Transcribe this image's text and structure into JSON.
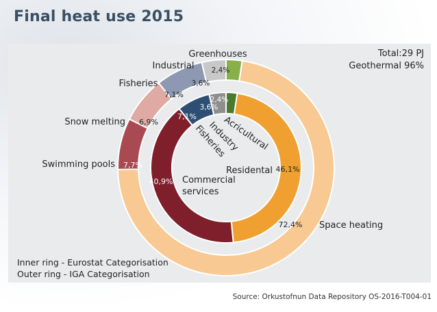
{
  "page": {
    "title": "Final heat use 2015",
    "source": "Source: Orkustofnun Data Repository OS-2016-T004-01"
  },
  "chart_data": {
    "type": "donut",
    "title": "Final heat use 2015",
    "notes": {
      "total": "Total:29 PJ",
      "geothermal": "Geothermal 96%",
      "inner_ring_legend": "Inner ring - Eurostat Categorisation",
      "outer_ring_legend": "Outer ring - IGA Categorisation"
    },
    "inner_ring": {
      "name": "Eurostat Categorisation",
      "slices": [
        {
          "name": "Acricultural",
          "value": 2.4,
          "label": "2,4%",
          "color": "#4a7a2c"
        },
        {
          "name": "Residental",
          "value": 46.1,
          "label": "46,1%",
          "color": "#f0a030"
        },
        {
          "name": "Commercial services",
          "value": 40.9,
          "label": "40,9%",
          "color": "#7e1f2b"
        },
        {
          "name": "Fisheries",
          "value": 7.1,
          "label": "7,1%",
          "color": "#2e4f73"
        },
        {
          "name": "Industry",
          "value": 3.6,
          "label": "3,6%",
          "color": "#8e8e8e"
        }
      ]
    },
    "outer_ring": {
      "name": "IGA Categorisation",
      "slices": [
        {
          "name": "Greenhouses",
          "value": 2.4,
          "label": "2,4%",
          "color": "#86b04a"
        },
        {
          "name": "Space heating",
          "value": 72.4,
          "label": "72,4%",
          "color": "#f8c992"
        },
        {
          "name": "Swimming pools",
          "value": 7.7,
          "label": "7,7%",
          "color": "#a94a52"
        },
        {
          "name": "Snow melting",
          "value": 6.9,
          "label": "6,9%",
          "color": "#deaaa3"
        },
        {
          "name": "Fisheries",
          "value": 7.1,
          "label": "7,1%",
          "color": "#8d99b3"
        },
        {
          "name": "Industrial",
          "value": 3.6,
          "label": "3,6%",
          "color": "#c8c8c8"
        }
      ]
    },
    "legend": [
      "Inner ring - Eurostat Categorisation",
      "Outer ring - IGA Categorisation"
    ]
  }
}
